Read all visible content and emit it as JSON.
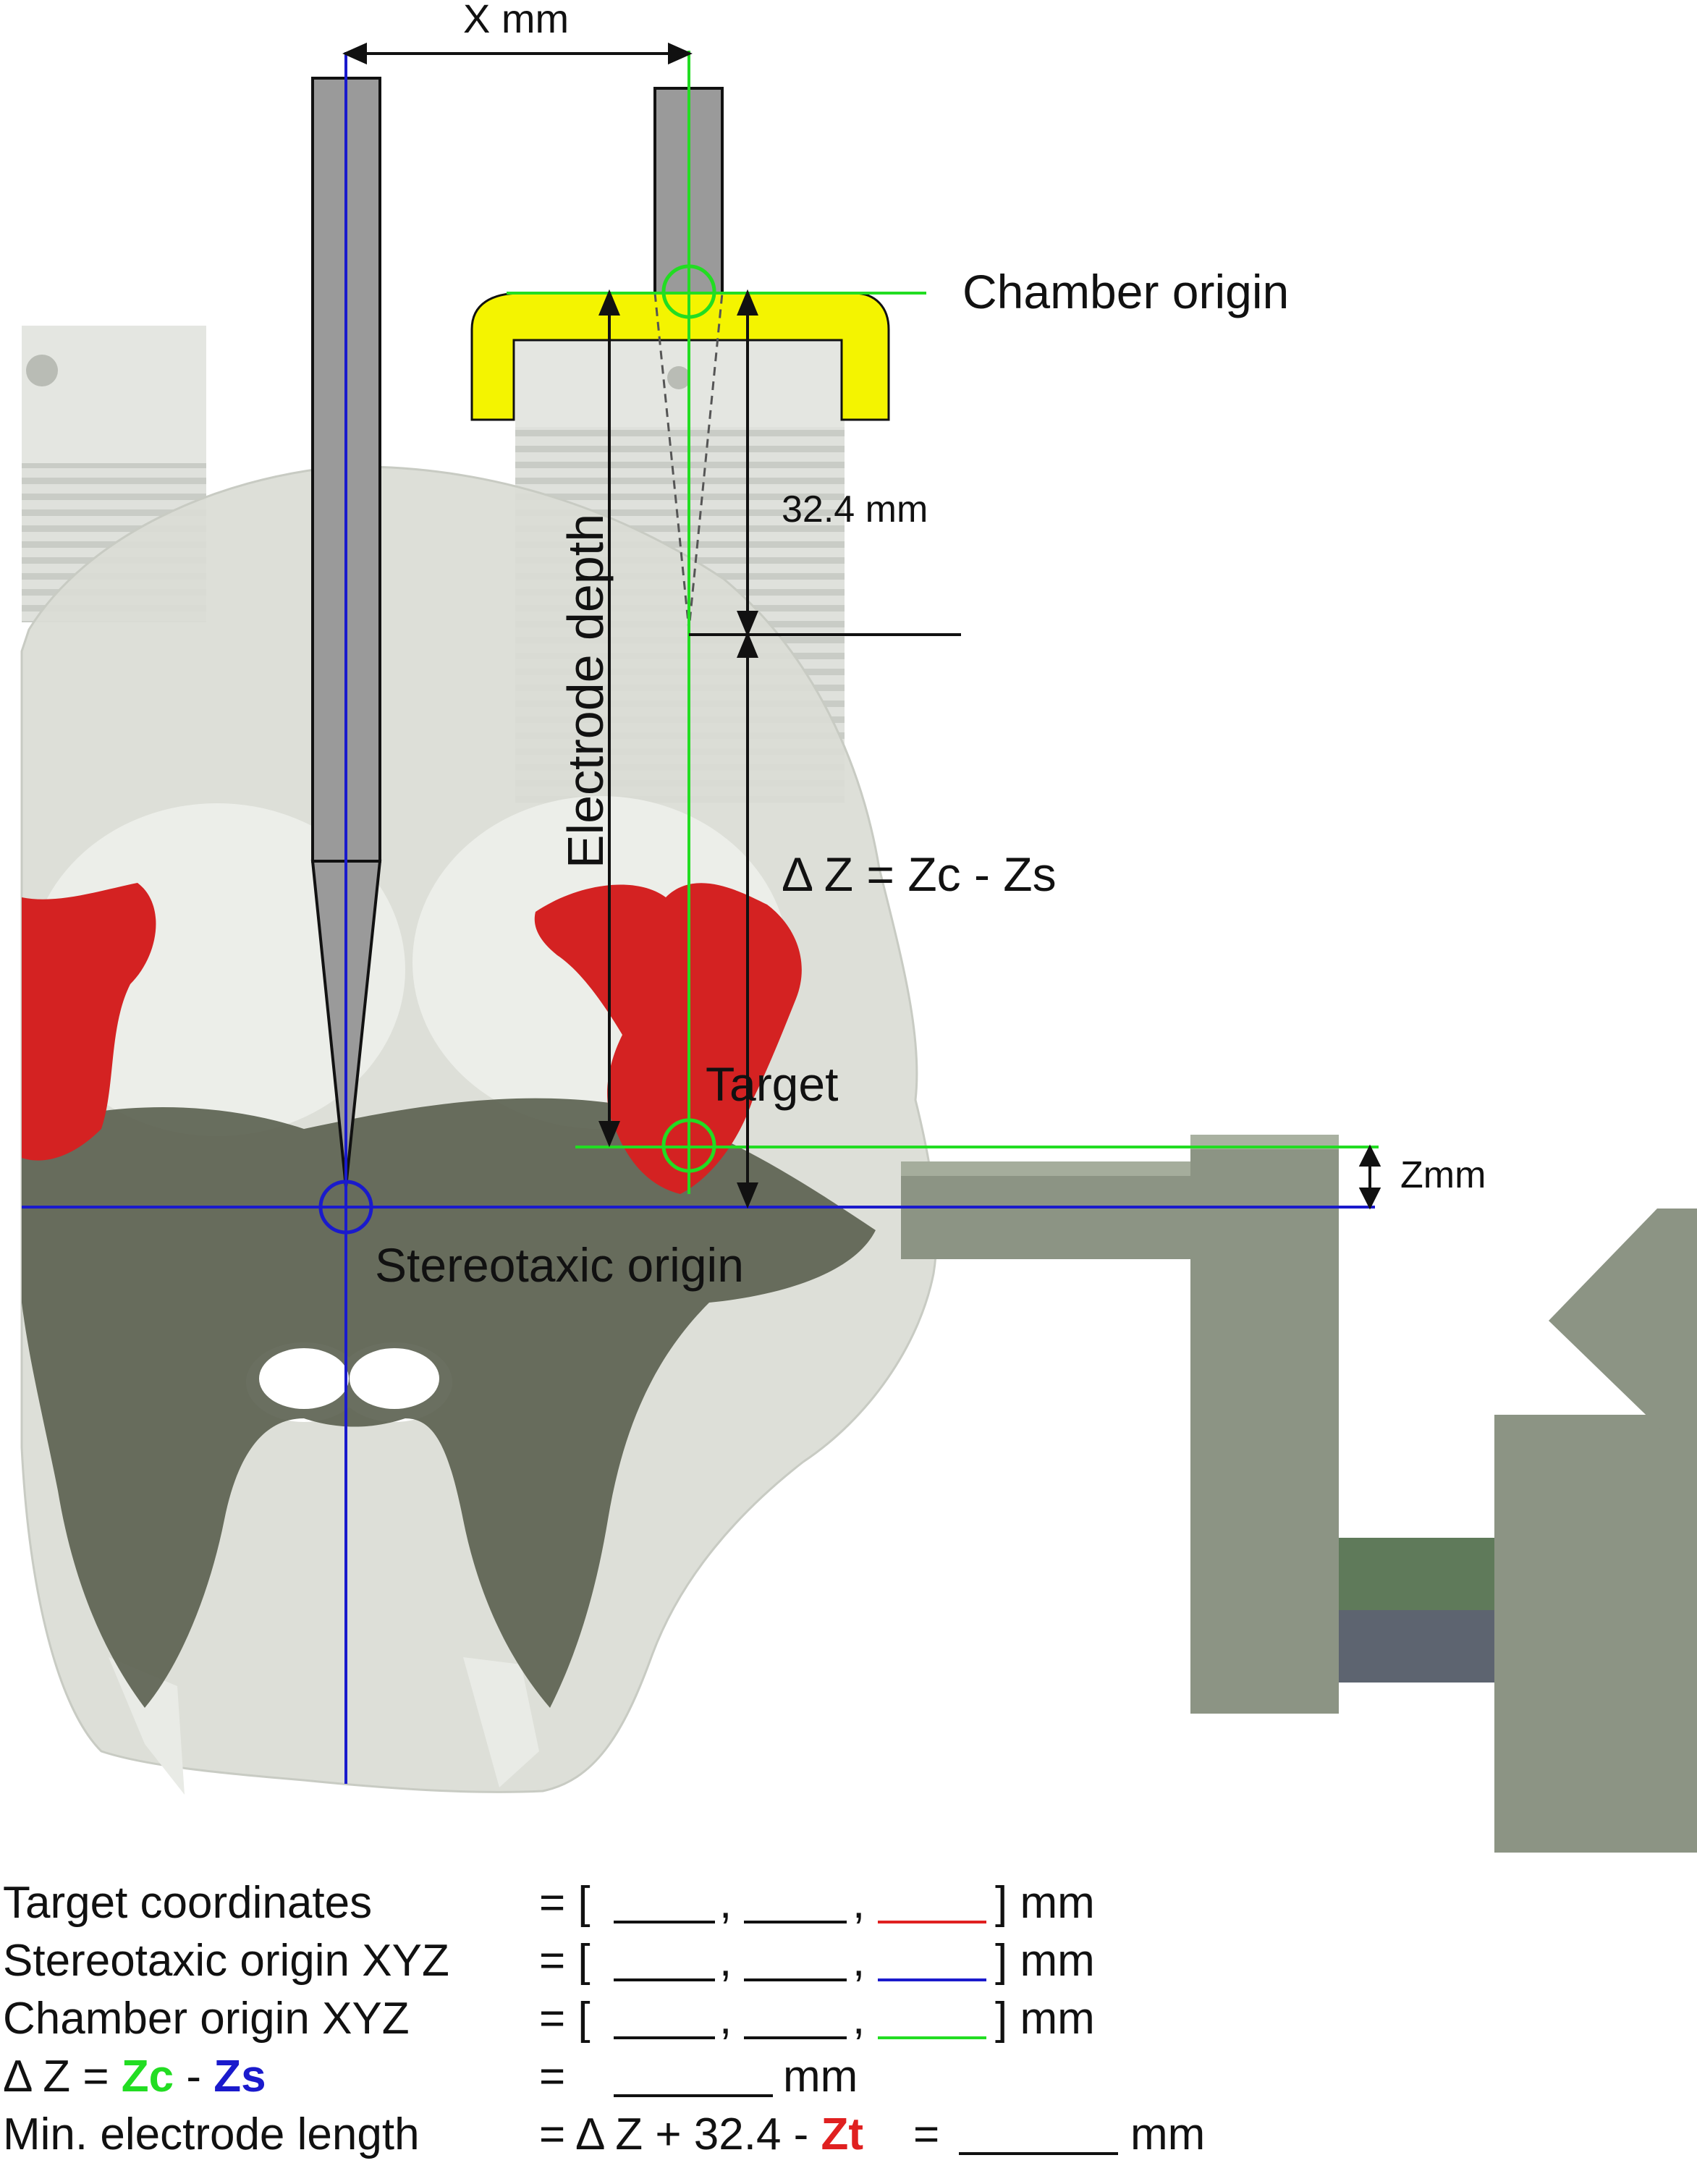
{
  "diagram": {
    "labels": {
      "x_distance": "X mm",
      "chamber_origin": "Chamber origin",
      "offset_32": "32.4 mm",
      "electrode_depth": "Electrode depth",
      "delta_z": "Δ Z = Zc - Zs",
      "target": "Target",
      "zmm": "Zmm",
      "stereotaxic_origin": "Stereotaxic origin"
    },
    "colors": {
      "chamber_axis": "#22dd22",
      "stereotaxic_axis": "#1a1acc",
      "target_region": "#d42222",
      "chamber_cap": "#f4f400",
      "electrode": "#9a9a9a",
      "skull": "#d9dcd4",
      "bone_dense": "#5a5f4f",
      "stereotax_frame": "#8c9484"
    }
  },
  "equations": [
    {
      "name": "Target coordinates",
      "prefix": "= [",
      "suffix": "] mm",
      "third_blank_color": "#e02020"
    },
    {
      "name": "Stereotaxic origin XYZ",
      "prefix": "= [",
      "suffix": "] mm",
      "third_blank_color": "#1a1acc"
    },
    {
      "name": "Chamber origin XYZ",
      "prefix": "= [",
      "suffix": "] mm",
      "third_blank_color": "#22dd22"
    }
  ],
  "delta_row": {
    "name_prefix": "Δ Z = ",
    "zc": "Zc",
    "minus": " - ",
    "zs": "Zs",
    "rhs": "=",
    "unit": "mm",
    "zc_color": "#22dd22",
    "zs_color": "#1a1acc"
  },
  "length_row": {
    "name": "Min. electrode length",
    "rhs_prefix": "= Δ Z + 32.4 - ",
    "zt": "Zt",
    "equals": "=",
    "unit": "mm",
    "zt_color": "#e02020"
  }
}
